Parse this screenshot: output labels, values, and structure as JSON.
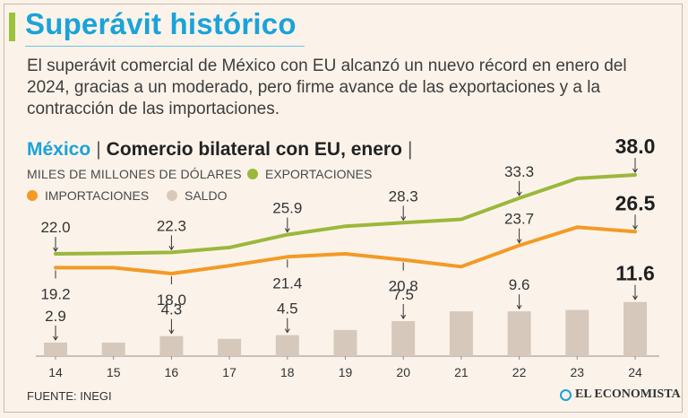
{
  "headline": "Superávit histórico",
  "dek": "El superávit comercial de México con EU alcanzó un nuevo récord en enero del 2024, gracias a un moderado, pero firme avance de las exportaciones y a la contracción de las importaciones.",
  "chart_title": {
    "country": "México",
    "separator": "|",
    "subject": "Comercio bilateral con EU, enero",
    "end_separator": "|"
  },
  "units_label": "MILES DE MILLONES DE DÓLARES",
  "source": "FUENTE: INEGI",
  "brand": "EL ECONOMISTA",
  "colors": {
    "exports": "#9bb83b",
    "imports": "#f39a25",
    "balance": "#d6c8bb",
    "headline": "#1aa3d9"
  },
  "chart_data": {
    "type": "line",
    "title": "Comercio bilateral con EU, enero",
    "ylabel": "Miles de millones de dólares",
    "categories": [
      "14",
      "15",
      "16",
      "17",
      "18",
      "19",
      "20",
      "21",
      "22",
      "23",
      "24"
    ],
    "series": [
      {
        "name": "EXPORTACIONES",
        "type": "line",
        "color": "#9bb83b",
        "values": [
          22.0,
          22.1,
          22.3,
          23.3,
          25.9,
          27.6,
          28.3,
          29.0,
          33.3,
          37.3,
          38.0
        ],
        "labels": [
          "22.0",
          null,
          "22.3",
          null,
          "25.9",
          null,
          "28.3",
          null,
          "33.3",
          null,
          "38.0"
        ]
      },
      {
        "name": "IMPORTACIONES",
        "type": "line",
        "color": "#f39a25",
        "values": [
          19.2,
          19.2,
          18.0,
          19.6,
          21.4,
          22.0,
          20.8,
          19.4,
          23.7,
          27.4,
          26.5
        ],
        "labels": [
          "19.2",
          null,
          "18.0",
          null,
          "21.4",
          null,
          "20.8",
          null,
          "23.7",
          null,
          "26.5"
        ]
      },
      {
        "name": "SALDO",
        "type": "bar",
        "color": "#d6c8bb",
        "values": [
          2.9,
          2.9,
          4.3,
          3.7,
          4.5,
          5.6,
          7.5,
          9.6,
          9.6,
          9.9,
          11.6
        ],
        "labels": [
          "2.9",
          null,
          "4.3",
          null,
          "4.5",
          null,
          "7.5",
          null,
          "9.6",
          null,
          "11.6"
        ]
      }
    ],
    "highlight_index": 10
  }
}
